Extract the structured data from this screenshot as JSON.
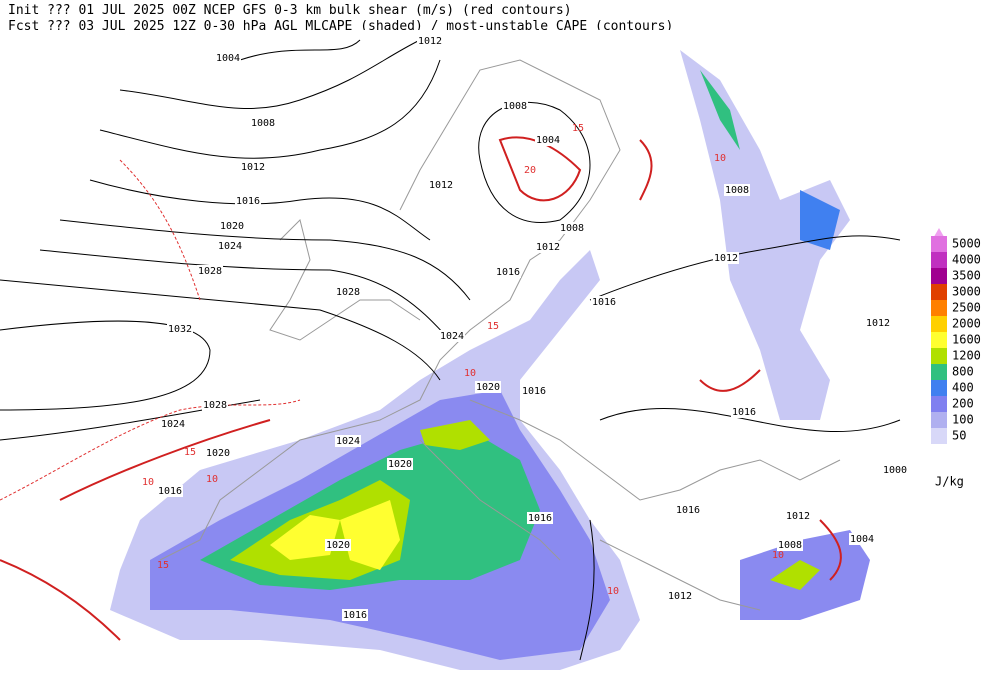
{
  "header": {
    "line1": "Init  ??? 01 JUL 2025 00Z  NCEP GFS 0-3 km bulk shear (m/s) (red contours)",
    "line2": "Fcst ??? 03 JUL 2025 12Z  0-30 hPa AGL MLCAPE (shaded) / most-unstable CAPE (contours)"
  },
  "legend": {
    "units": "J/kg",
    "levels": [
      5000,
      4000,
      3500,
      3000,
      2500,
      2000,
      1600,
      1200,
      800,
      400,
      200,
      100,
      50
    ],
    "colors": [
      "#e070e0",
      "#c030c0",
      "#a00090",
      "#e04000",
      "#ff8000",
      "#ffd000",
      "#ffff30",
      "#b0e000",
      "#30c080",
      "#4080f0",
      "#8080f0",
      "#b0b0f0",
      "#d8d8f8"
    ]
  },
  "isobar_labels": [
    "1004",
    "1008",
    "1012",
    "1016",
    "1020",
    "1024",
    "1028",
    "1028",
    "1032",
    "1012",
    "1008",
    "1004",
    "1012",
    "1008",
    "1012",
    "1016",
    "1016",
    "1024",
    "1020",
    "1016",
    "1028",
    "1024",
    "1024",
    "1020",
    "1020",
    "1016",
    "1016",
    "1020",
    "1016",
    "1016",
    "1012",
    "1012",
    "1008",
    "1004",
    "1008",
    "1012",
    "1012",
    "1016",
    "1000"
  ],
  "shear_labels": [
    "15",
    "10",
    "15",
    "10",
    "10",
    "15",
    "15",
    "10",
    "20",
    "10",
    "10"
  ]
}
